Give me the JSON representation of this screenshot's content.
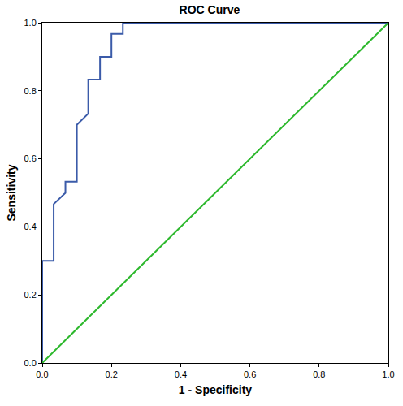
{
  "chart_data": {
    "type": "line",
    "title": "ROC Curve",
    "x_label": "1 - Specificity",
    "y_label": "Sensitivity",
    "series": [
      {
        "color": "#3b5ba9",
        "line_style": "solid",
        "x": [
          0,
          0,
          0.033,
          0.033,
          0.067,
          0.067,
          0.1,
          0.1,
          0.133,
          0.133,
          0.167,
          0.167,
          0.2,
          0.2,
          0.233,
          0.233,
          1
        ],
        "values": [
          0,
          0.3,
          0.3,
          0.467,
          0.5,
          0.533,
          0.533,
          0.7,
          0.733,
          0.833,
          0.833,
          0.9,
          0.9,
          0.967,
          0.967,
          1,
          1
        ]
      },
      {
        "color": "#2db82d",
        "line_style": "solid",
        "x": [
          0,
          1
        ],
        "values": [
          0,
          1
        ]
      }
    ],
    "xlim": [
      0,
      1
    ],
    "ylim": [
      0,
      1
    ],
    "xticks": [
      {
        "value": 0,
        "label": "0.0"
      },
      0.2,
      0.4,
      0.6,
      0.8,
      {
        "value": 1,
        "label": "1.0"
      }
    ],
    "yticks": [
      {
        "value": 0,
        "label": "0.0"
      },
      0.2,
      0.4,
      0.6,
      0.8,
      {
        "value": 1,
        "label": "1.0"
      }
    ],
    "grid": false
  }
}
